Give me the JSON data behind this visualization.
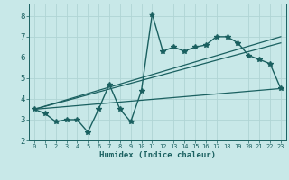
{
  "xlabel": "Humidex (Indice chaleur)",
  "bg_color": "#c8e8e8",
  "grid_color": "#b0d4d4",
  "line_color": "#1a6060",
  "xlim": [
    -0.5,
    23.5
  ],
  "ylim": [
    2.0,
    8.6
  ],
  "xticks": [
    0,
    1,
    2,
    3,
    4,
    5,
    6,
    7,
    8,
    9,
    10,
    11,
    12,
    13,
    14,
    15,
    16,
    17,
    18,
    19,
    20,
    21,
    22,
    23
  ],
  "yticks": [
    2,
    3,
    4,
    5,
    6,
    7,
    8
  ],
  "series1_x": [
    0,
    1,
    2,
    3,
    4,
    5,
    6,
    7,
    8,
    9,
    10,
    11,
    12,
    13,
    14,
    15,
    16,
    17,
    18,
    19,
    20,
    21,
    22,
    23
  ],
  "series1_y": [
    3.5,
    3.3,
    2.9,
    3.0,
    3.0,
    2.4,
    3.5,
    4.7,
    3.5,
    2.9,
    4.4,
    8.1,
    6.3,
    6.5,
    6.3,
    6.5,
    6.6,
    7.0,
    7.0,
    6.7,
    6.1,
    5.9,
    5.7,
    4.5
  ],
  "trend1_x": [
    0,
    23
  ],
  "trend1_y": [
    3.5,
    4.5
  ],
  "trend2_x": [
    0,
    23
  ],
  "trend2_y": [
    3.5,
    6.7
  ],
  "trend3_x": [
    0,
    23
  ],
  "trend3_y": [
    3.5,
    7.0
  ]
}
